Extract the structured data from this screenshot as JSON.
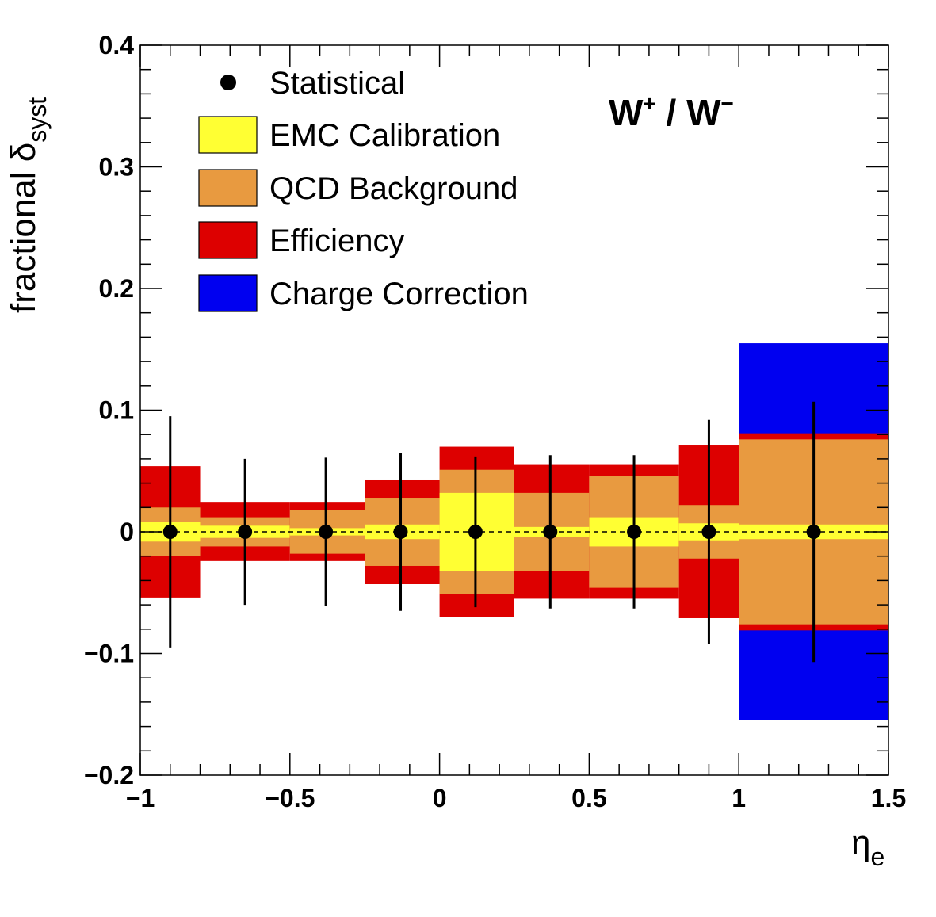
{
  "chart_data": {
    "type": "bar",
    "title": "W⁺ / W⁻",
    "title_parts": {
      "base1": "W",
      "sup1": "+",
      "mid": " / W",
      "sup2": "−"
    },
    "ylabel": {
      "main": "fractional  δ",
      "sub": "syst"
    },
    "xlabel": {
      "main": "η",
      "sub": "e"
    },
    "xlim": [
      -1,
      1.5
    ],
    "ylim": [
      -0.2,
      0.4
    ],
    "x_ticks": [
      -1,
      -0.5,
      0,
      0.5,
      1,
      1.5
    ],
    "x_tick_labels": [
      "−1",
      "−0.5",
      "0",
      "0.5",
      "1",
      "1.5"
    ],
    "y_ticks": [
      -0.2,
      -0.1,
      0,
      0.1,
      0.2,
      0.3,
      0.4
    ],
    "y_tick_labels": [
      "−0.2",
      "−0.1",
      "0",
      "0.1",
      "0.2",
      "0.3",
      "0.4"
    ],
    "reference_line": 0,
    "legend_position": "top-left",
    "legend": [
      {
        "name": "Statistical",
        "kind": "marker",
        "color": "#000000"
      },
      {
        "name": "EMC Calibration",
        "kind": "box",
        "color": "#ffff33"
      },
      {
        "name": "QCD Background",
        "kind": "box",
        "color": "#e89a40"
      },
      {
        "name": "Efficiency",
        "kind": "box",
        "color": "#dd0000"
      },
      {
        "name": "Charge Correction",
        "kind": "box",
        "color": "#0000f0"
      }
    ],
    "bins": [
      {
        "lo": -1.0,
        "hi": -0.8,
        "x": -0.9,
        "stat": 0.095,
        "emc": 0.008,
        "qcd": 0.02,
        "eff": 0.054,
        "charge": 0
      },
      {
        "lo": -0.8,
        "hi": -0.5,
        "x": -0.65,
        "stat": 0.06,
        "emc": 0.005,
        "qcd": 0.012,
        "eff": 0.024,
        "charge": 0
      },
      {
        "lo": -0.5,
        "hi": -0.25,
        "x": -0.38,
        "stat": 0.061,
        "emc": 0.003,
        "qcd": 0.018,
        "eff": 0.024,
        "charge": 0
      },
      {
        "lo": -0.25,
        "hi": 0.0,
        "x": -0.13,
        "stat": 0.065,
        "emc": 0.006,
        "qcd": 0.028,
        "eff": 0.043,
        "charge": 0
      },
      {
        "lo": 0.0,
        "hi": 0.25,
        "x": 0.12,
        "stat": 0.062,
        "emc": 0.032,
        "qcd": 0.051,
        "eff": 0.07,
        "charge": 0
      },
      {
        "lo": 0.25,
        "hi": 0.5,
        "x": 0.37,
        "stat": 0.063,
        "emc": 0.004,
        "qcd": 0.032,
        "eff": 0.055,
        "charge": 0
      },
      {
        "lo": 0.5,
        "hi": 0.8,
        "x": 0.65,
        "stat": 0.063,
        "emc": 0.012,
        "qcd": 0.046,
        "eff": 0.055,
        "charge": 0
      },
      {
        "lo": 0.8,
        "hi": 1.0,
        "x": 0.9,
        "stat": 0.092,
        "emc": 0.007,
        "qcd": 0.022,
        "eff": 0.071,
        "charge": 0
      },
      {
        "lo": 1.0,
        "hi": 1.5,
        "x": 1.25,
        "stat": 0.107,
        "emc": 0.006,
        "qcd": 0.076,
        "eff": 0.081,
        "charge": 0.155
      }
    ]
  }
}
